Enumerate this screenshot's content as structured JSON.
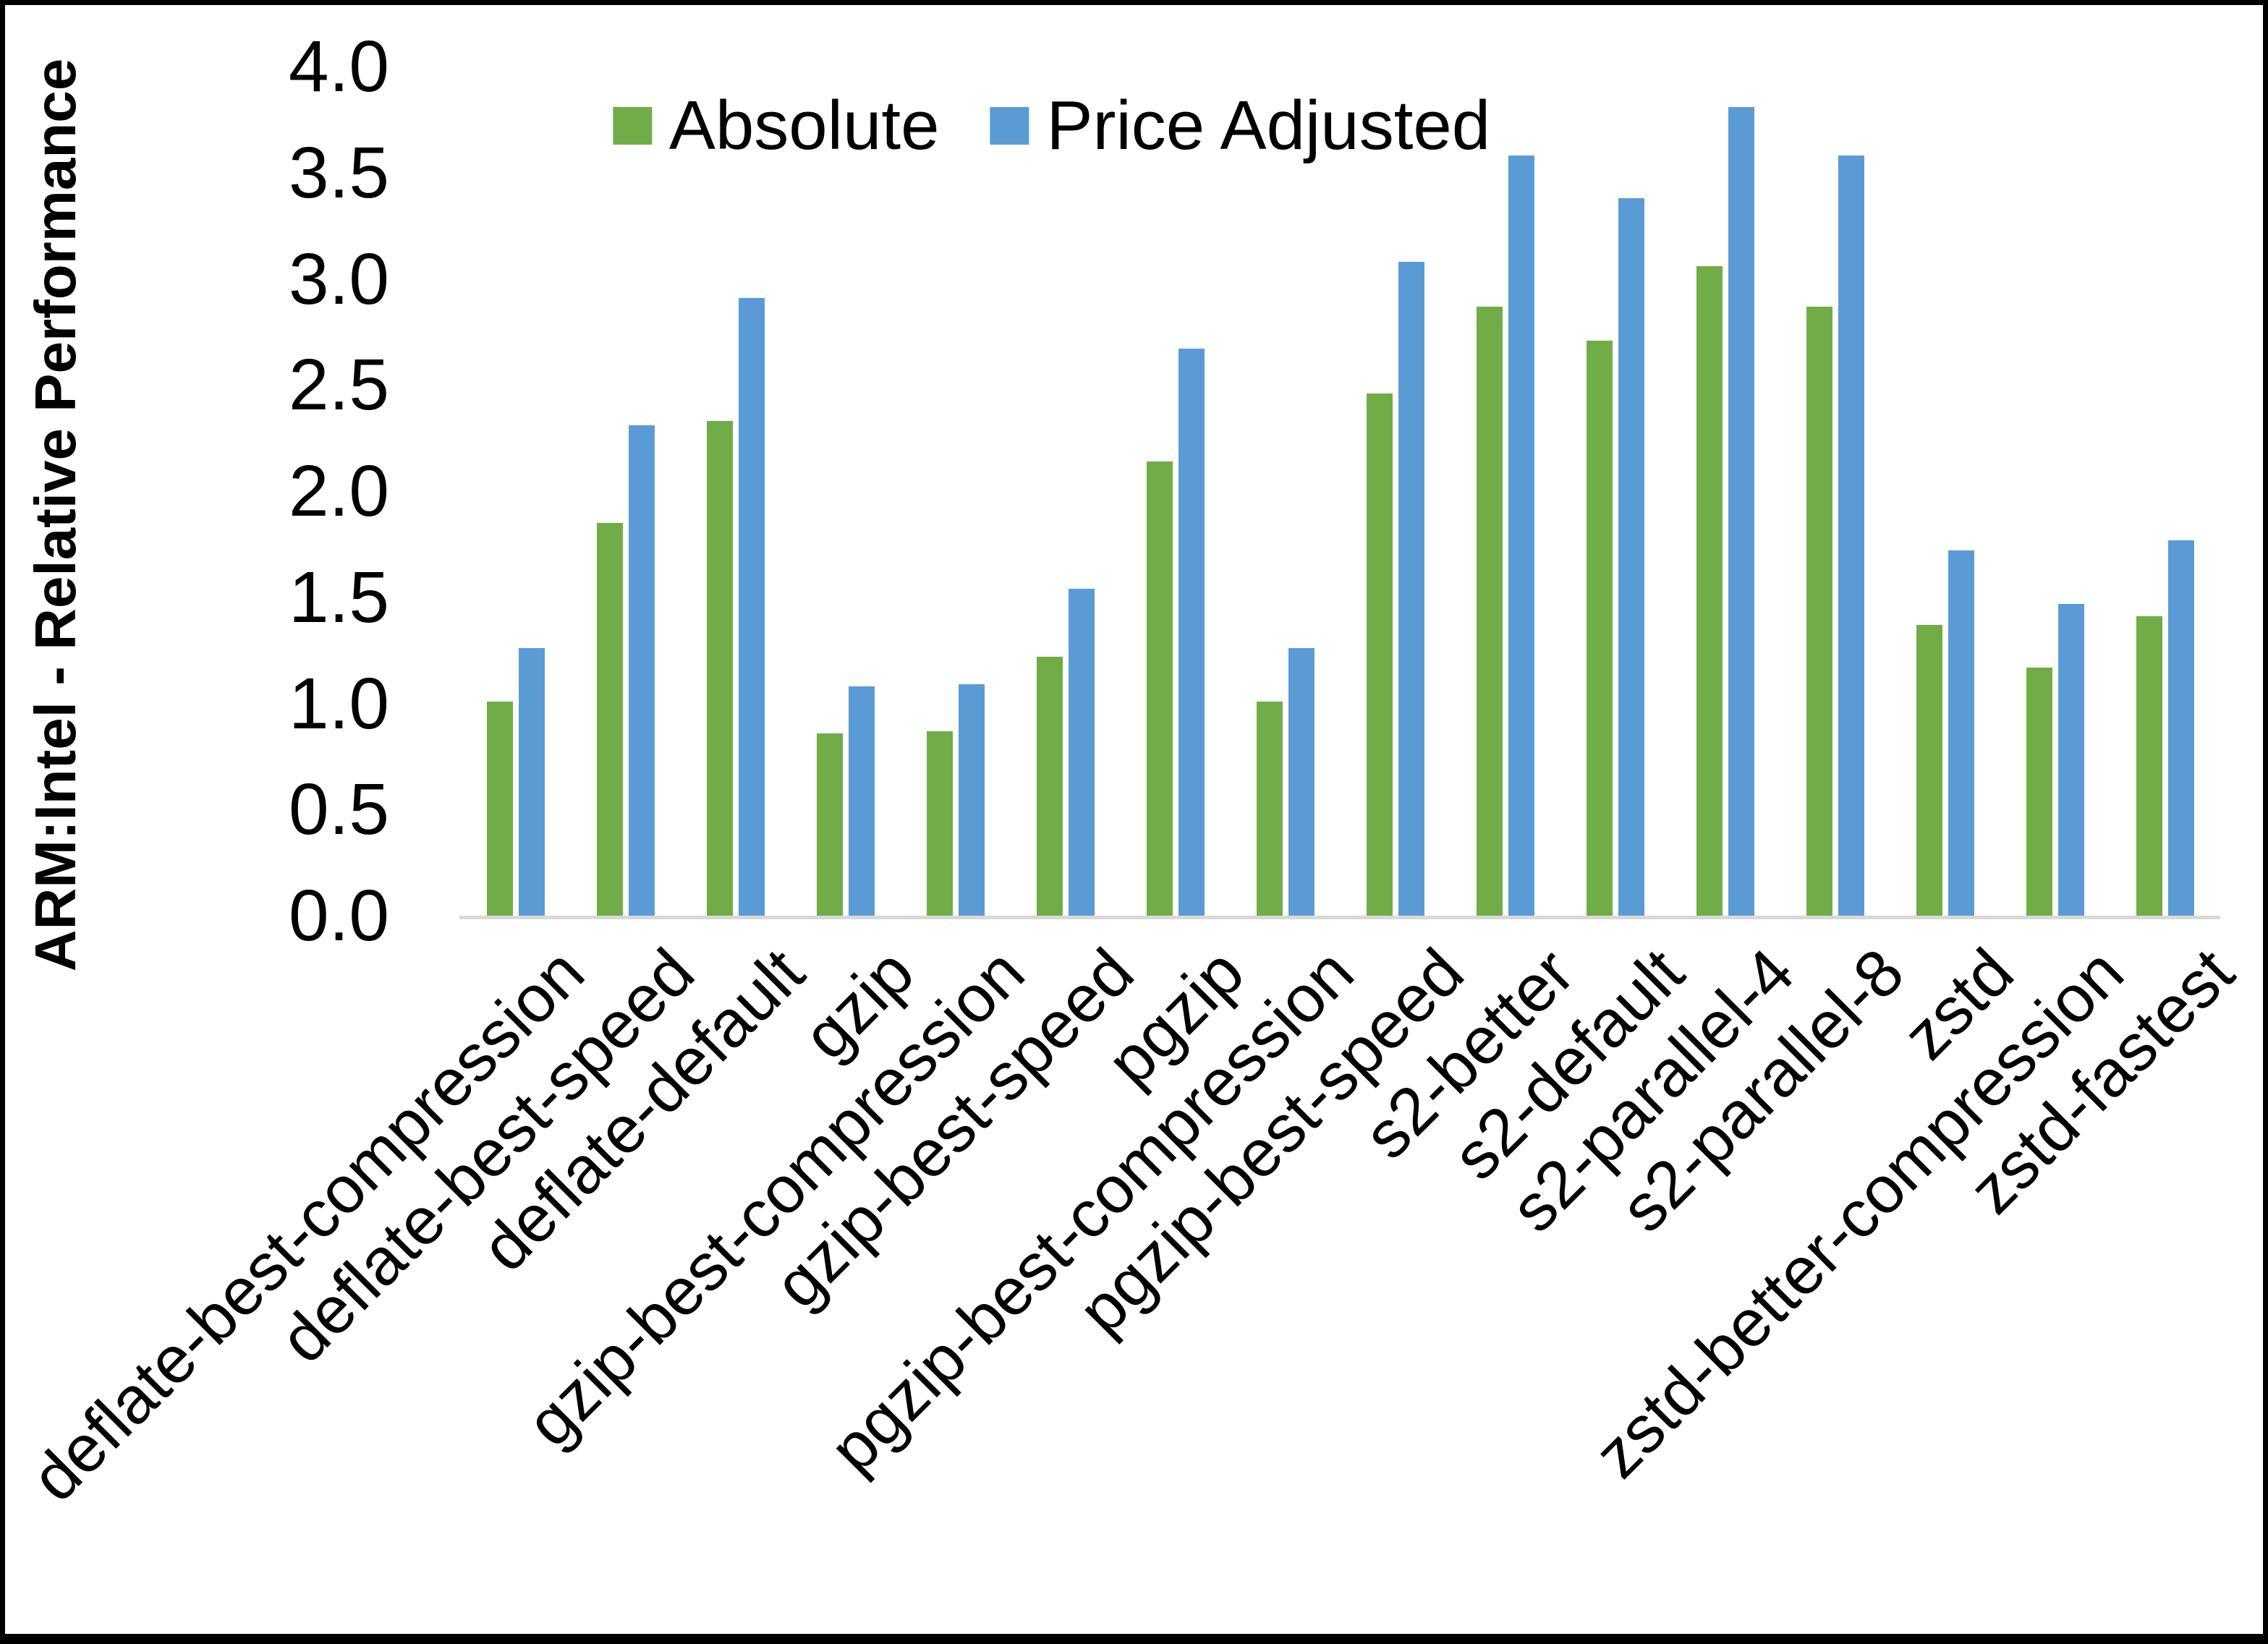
{
  "chart_data": {
    "type": "bar",
    "title": "",
    "xlabel": "",
    "ylabel": "ARM:Intel - Relative Performance",
    "ylim": [
      0.0,
      4.0
    ],
    "ytick_step": 0.5,
    "ytick_labels": [
      "0.0",
      "0.5",
      "1.0",
      "1.5",
      "2.0",
      "2.5",
      "3.0",
      "3.5",
      "4.0"
    ],
    "grid": false,
    "legend_position": "top-center",
    "categories": [
      "deflate-best-compression",
      "deflate-best-speed",
      "deflate-default",
      "gzip",
      "gzip-best-compression",
      "gzip-best-speed",
      "pgzip",
      "pgzip-best-compression",
      "pgzip-best-speed",
      "s2-better",
      "s2-default",
      "s2-parallel-4",
      "s2-parallel-8",
      "zstd",
      "zstd-better-compression",
      "zstd-fastest"
    ],
    "series": [
      {
        "name": "Absolute",
        "color": "#70AD47",
        "values": [
          1.01,
          1.85,
          2.33,
          0.86,
          0.87,
          1.22,
          2.14,
          1.01,
          2.46,
          2.87,
          2.71,
          3.06,
          2.87,
          1.37,
          1.17,
          1.41
        ]
      },
      {
        "name": "Price Adjusted",
        "color": "#5B9BD5",
        "values": [
          1.26,
          2.31,
          2.91,
          1.08,
          1.09,
          1.54,
          2.67,
          1.26,
          3.08,
          3.58,
          3.38,
          3.81,
          3.58,
          1.72,
          1.47,
          1.77
        ]
      }
    ]
  },
  "colors": {
    "background": "#FFFFFF",
    "frame": "#000000",
    "axis_line": "#D9D9D9",
    "text": "#000000"
  }
}
